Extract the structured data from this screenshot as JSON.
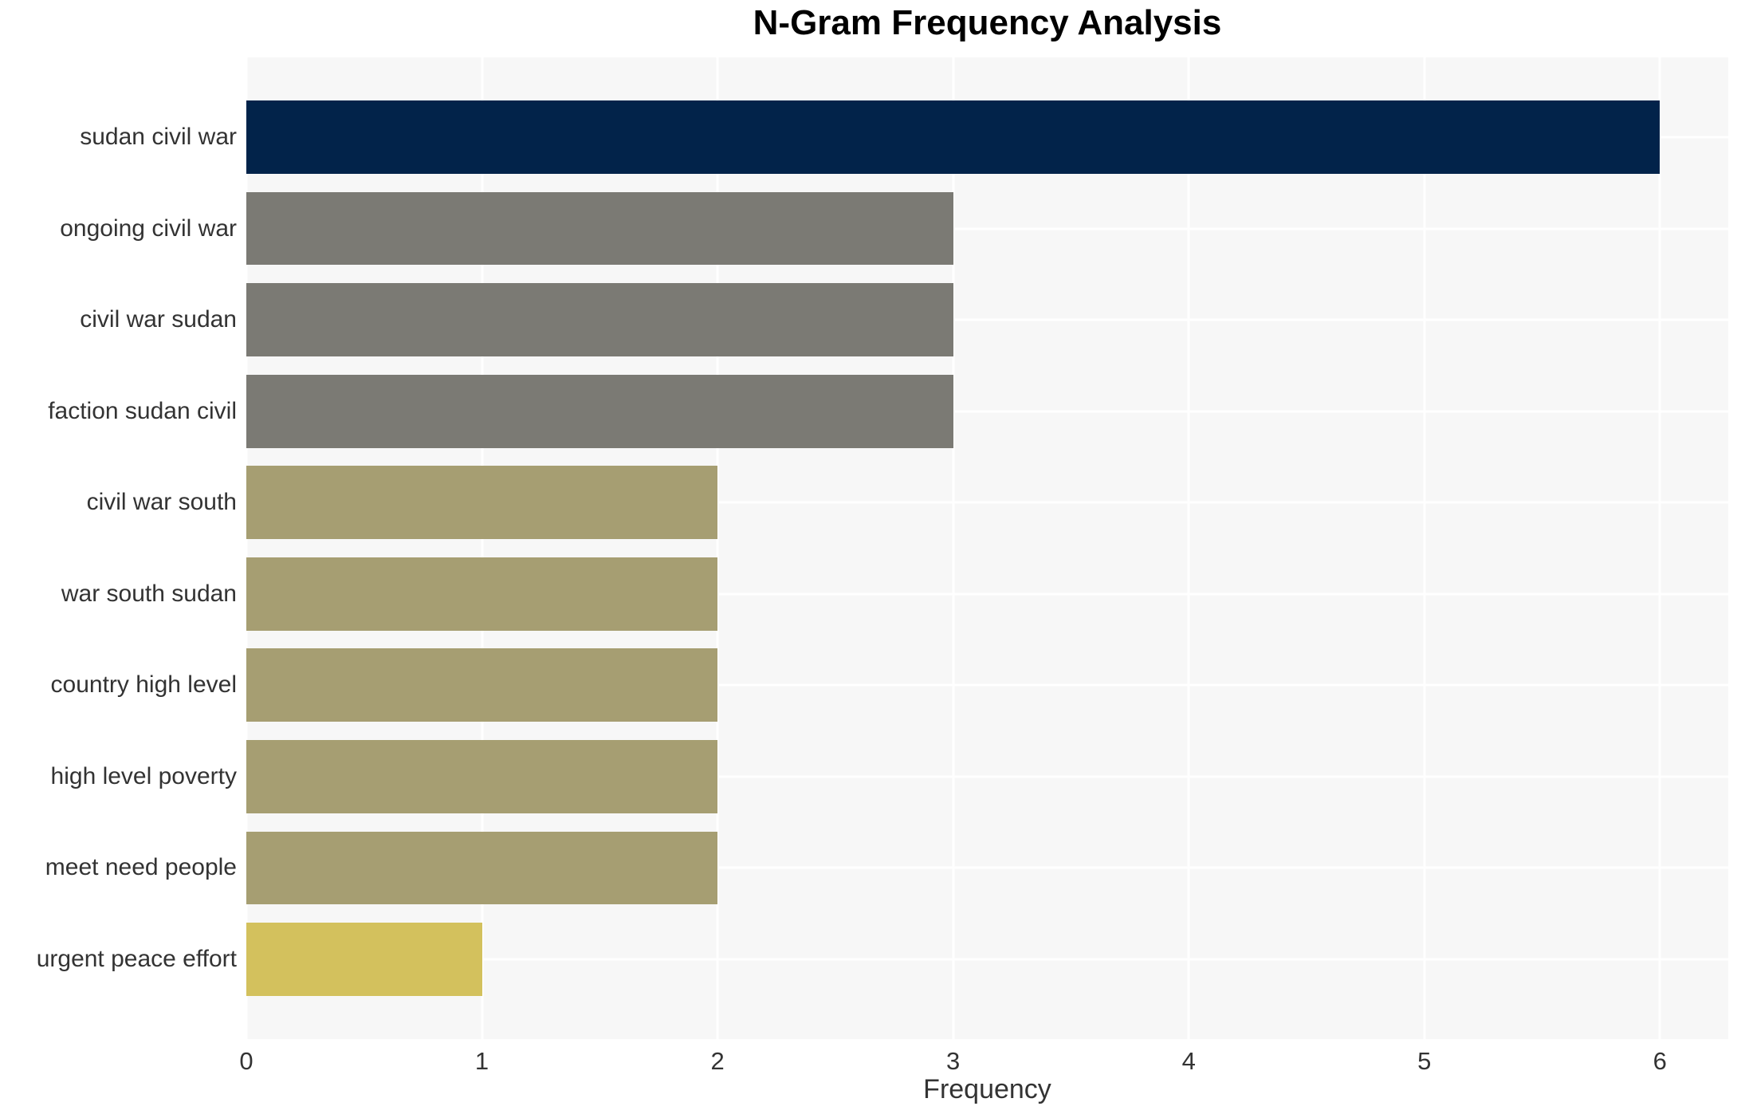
{
  "chart_data": {
    "type": "bar",
    "orientation": "horizontal",
    "title": "N-Gram Frequency Analysis",
    "xlabel": "Frequency",
    "ylabel": "",
    "categories": [
      "sudan civil war",
      "ongoing civil war",
      "civil war sudan",
      "faction sudan civil",
      "civil war south",
      "war south sudan",
      "country high level",
      "high level poverty",
      "meet need people",
      "urgent peace effort"
    ],
    "values": [
      6,
      3,
      3,
      3,
      2,
      2,
      2,
      2,
      2,
      1
    ],
    "bar_colors": [
      "#02234a",
      "#7b7a74",
      "#7b7a74",
      "#7b7a74",
      "#a69e72",
      "#a69e72",
      "#a69e72",
      "#a69e72",
      "#a69e72",
      "#d3c15d"
    ],
    "x_ticks": [
      "0",
      "1",
      "2",
      "3",
      "4",
      "5",
      "6"
    ],
    "xlim": [
      0,
      6.29
    ],
    "y_margin": 0.874,
    "bar_thickness": 0.8,
    "grid": true,
    "legend": "none",
    "plot_bg_color": "#f7f7f7",
    "grid_color": "#ffffff",
    "tick_text_color": "#333333",
    "title_color": "#000000"
  }
}
